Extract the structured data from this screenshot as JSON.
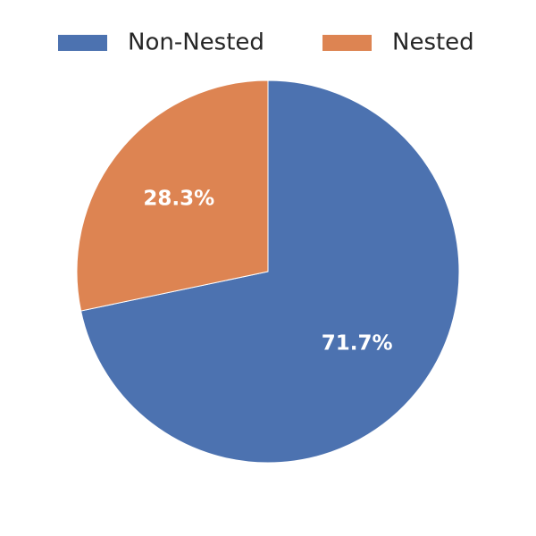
{
  "chart_data": {
    "type": "pie",
    "categories": [
      "Non-Nested",
      "Nested"
    ],
    "values": [
      71.7,
      28.3
    ],
    "value_labels": [
      "71.7%",
      "28.3%"
    ],
    "colors": [
      "#4c72b0",
      "#dd8452"
    ],
    "start_angle": 90,
    "clockwise": true,
    "legend": "top"
  }
}
